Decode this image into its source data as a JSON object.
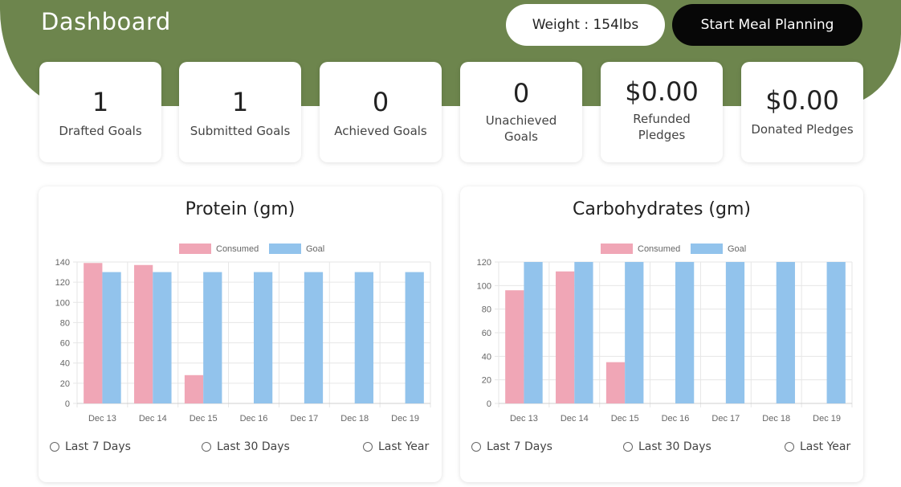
{
  "header": {
    "title": "Dashboard",
    "weight_text": "Weight : 154lbs",
    "start_button": "Start Meal Planning",
    "accent_color": "#6d854d"
  },
  "stats": [
    {
      "value": "1",
      "label": "Drafted Goals"
    },
    {
      "value": "1",
      "label": "Submitted Goals"
    },
    {
      "value": "0",
      "label": "Achieved Goals"
    },
    {
      "value": "0",
      "label": "Unachieved Goals"
    },
    {
      "value": "$0.00",
      "label": "Refunded Pledges"
    },
    {
      "value": "$0.00",
      "label": "Donated Pledges"
    }
  ],
  "range_options": [
    "Last 7 Days",
    "Last 30 Days",
    "Last Year"
  ],
  "chart_data": [
    {
      "type": "bar",
      "title": "Protein (gm)",
      "categories": [
        "Dec 13",
        "Dec 14",
        "Dec 15",
        "Dec 16",
        "Dec 17",
        "Dec 18",
        "Dec 19"
      ],
      "series": [
        {
          "name": "Consumed",
          "color": "#f0a6b6",
          "values": [
            139,
            137,
            28,
            0,
            0,
            0,
            0
          ]
        },
        {
          "name": "Goal",
          "color": "#92c3ec",
          "values": [
            130,
            130,
            130,
            130,
            130,
            130,
            130
          ]
        }
      ],
      "ylim": [
        0,
        140
      ],
      "yticks": [
        0,
        20,
        40,
        60,
        80,
        100,
        120,
        140
      ],
      "legend": "top",
      "grid": true
    },
    {
      "type": "bar",
      "title": "Carbohydrates (gm)",
      "categories": [
        "Dec 13",
        "Dec 14",
        "Dec 15",
        "Dec 16",
        "Dec 17",
        "Dec 18",
        "Dec 19"
      ],
      "series": [
        {
          "name": "Consumed",
          "color": "#f0a6b6",
          "values": [
            96,
            112,
            35,
            0,
            0,
            0,
            0
          ]
        },
        {
          "name": "Goal",
          "color": "#92c3ec",
          "values": [
            120,
            120,
            120,
            120,
            120,
            120,
            120
          ]
        }
      ],
      "ylim": [
        0,
        120
      ],
      "yticks": [
        0,
        20,
        40,
        60,
        80,
        100,
        120
      ],
      "legend": "top",
      "grid": true
    }
  ]
}
